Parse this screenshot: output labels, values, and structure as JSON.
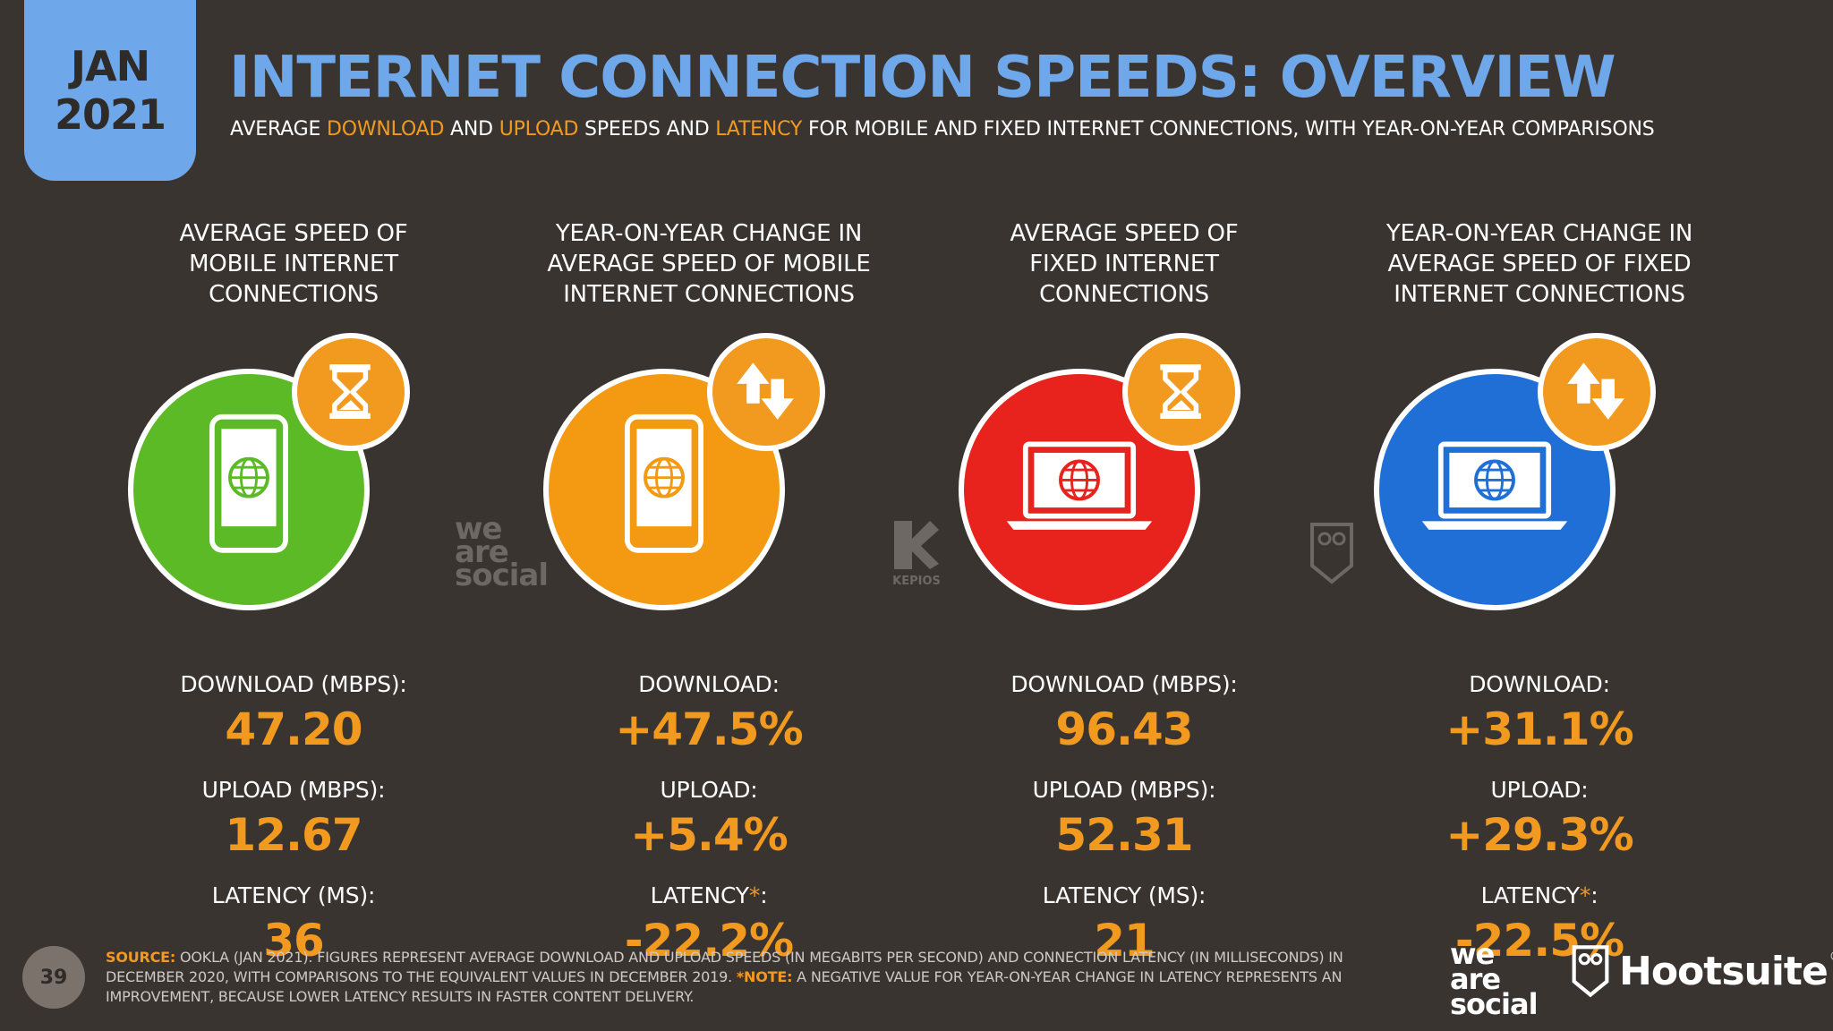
{
  "header": {
    "date_month": "JAN",
    "date_year": "2021",
    "title": "INTERNET CONNECTION SPEEDS: OVERVIEW",
    "subtitle_parts": {
      "p1": "AVERAGE ",
      "h1": "DOWNLOAD",
      "p2": " AND ",
      "h2": "UPLOAD",
      "p3": " SPEEDS AND ",
      "h3": "LATENCY",
      "p4": " FOR MOBILE AND FIXED INTERNET CONNECTIONS, WITH YEAR-ON-YEAR COMPARISONS"
    }
  },
  "colors": {
    "background": "#3a3431",
    "accent_blue": "#6fa8ea",
    "accent_orange": "#f29a1f",
    "mobile_green": "#5dba27",
    "mobile_orange": "#f39a12",
    "fixed_red": "#e8231e",
    "fixed_blue": "#1f6fd6"
  },
  "columns": [
    {
      "heading_l1": "AVERAGE SPEED OF",
      "heading_l2": "MOBILE INTERNET",
      "heading_l3": "CONNECTIONS",
      "icon": "smartphone-icon",
      "badge_icon": "hourglass-icon",
      "download_label": "DOWNLOAD (MBPS):",
      "download_value": "47.20",
      "upload_label": "UPLOAD (MBPS):",
      "upload_value": "12.67",
      "latency_label": "LATENCY (MS):",
      "latency_value": "36"
    },
    {
      "heading_l1": "YEAR-ON-YEAR CHANGE IN",
      "heading_l2": "AVERAGE SPEED OF MOBILE",
      "heading_l3": "INTERNET CONNECTIONS",
      "icon": "smartphone-icon",
      "badge_icon": "up-down-arrows-icon",
      "download_label": "DOWNLOAD:",
      "download_value": "+47.5%",
      "upload_label": "UPLOAD:",
      "upload_value": "+5.4%",
      "latency_label": "LATENCY",
      "latency_star": "*",
      "latency_colon": ":",
      "latency_value": "-22.2%"
    },
    {
      "heading_l1": "AVERAGE SPEED OF",
      "heading_l2": "FIXED INTERNET",
      "heading_l3": "CONNECTIONS",
      "icon": "laptop-icon",
      "badge_icon": "hourglass-icon",
      "download_label": "DOWNLOAD (MBPS):",
      "download_value": "96.43",
      "upload_label": "UPLOAD (MBPS):",
      "upload_value": "52.31",
      "latency_label": "LATENCY (MS):",
      "latency_value": "21"
    },
    {
      "heading_l1": "YEAR-ON-YEAR CHANGE IN",
      "heading_l2": "AVERAGE SPEED OF FIXED",
      "heading_l3": "INTERNET CONNECTIONS",
      "icon": "laptop-icon",
      "badge_icon": "up-down-arrows-icon",
      "download_label": "DOWNLOAD:",
      "download_value": "+31.1%",
      "upload_label": "UPLOAD:",
      "upload_value": "+29.3%",
      "latency_label": "LATENCY",
      "latency_star": "*",
      "latency_colon": ":",
      "latency_value": "-22.5%"
    }
  ],
  "watermarks": {
    "was_l1": "we",
    "was_l2": "are",
    "was_l3": "social",
    "kepios": "KEPIOS"
  },
  "footer": {
    "page_number": "39",
    "source_tag": "SOURCE:",
    "source_text": " OOKLA (JAN 2021). FIGURES REPRESENT AVERAGE DOWNLOAD AND UPLOAD SPEEDS (IN MEGABITS PER SECOND) AND CONNECTION LATENCY (IN MILLISECONDS) IN DECEMBER 2020, WITH COMPARISONS TO THE EQUIVALENT VALUES IN DECEMBER 2019. ",
    "note_tag": "*NOTE:",
    "note_text": " A NEGATIVE VALUE FOR YEAR-ON-YEAR CHANGE IN LATENCY REPRESENTS AN IMPROVEMENT, BECAUSE LOWER LATENCY RESULTS IN FASTER CONTENT DELIVERY.",
    "logo_was_l1": "we",
    "logo_was_l2": "are",
    "logo_was_l3": "social",
    "logo_hootsuite": "Hootsuite",
    "logo_reg": "®"
  }
}
